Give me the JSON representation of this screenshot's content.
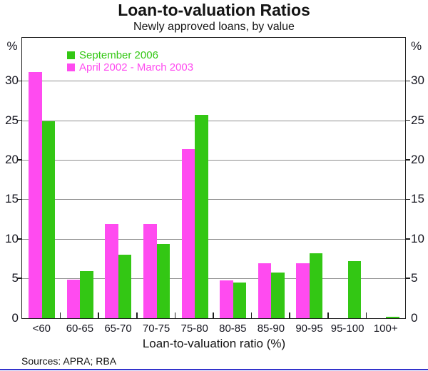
{
  "figure": {
    "source": "Sources: APRA; RBA",
    "y_axis_unit_left": "%",
    "y_axis_unit_right": "%"
  },
  "chart_data": {
    "type": "bar",
    "title": "Loan-to-valuation Ratios",
    "subtitle": "Newly approved loans, by value",
    "xlabel": "Loan-to-valuation ratio (%)",
    "ylabel": "%",
    "categories": [
      "<60",
      "60-65",
      "65-70",
      "70-75",
      "75-80",
      "80-85",
      "85-90",
      "90-95",
      "95-100",
      "100+"
    ],
    "series": [
      {
        "name": "September 2006",
        "color": "#33C714",
        "bar_position": "right",
        "values": [
          24.9,
          6.0,
          8.0,
          9.4,
          25.7,
          4.5,
          5.8,
          8.2,
          7.2,
          0.2
        ]
      },
      {
        "name": "April 2002 - March 2003",
        "color": "#FF4BF0",
        "bar_position": "left",
        "values": [
          31.2,
          4.9,
          11.9,
          11.9,
          21.4,
          4.8,
          7.0,
          7.0,
          0,
          0
        ]
      }
    ],
    "ylim": [
      0,
      35.4
    ],
    "yticks": [
      0,
      5,
      10,
      15,
      20,
      25,
      30
    ],
    "grid": "horizontal",
    "legend_position": "top-left-inside",
    "axis_color": "#1f1f1f",
    "gridline_color": "#8f8f8f"
  }
}
